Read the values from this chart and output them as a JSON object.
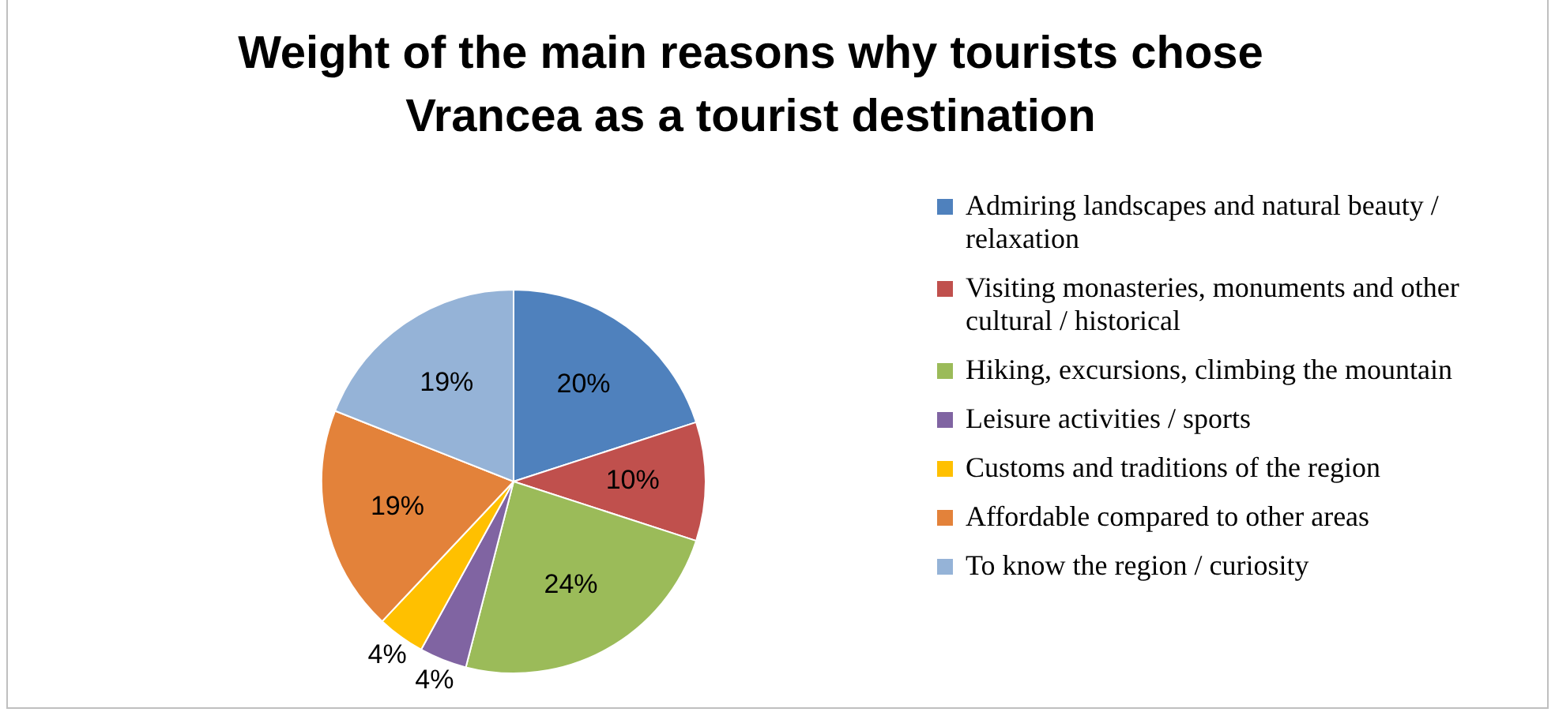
{
  "chart_data": {
    "type": "pie",
    "title": "Weight of the main reasons why tourists chose Vrancea as a tourist destination",
    "categories": [
      "Admiring landscapes and natural beauty / relaxation",
      "Visiting monasteries, monuments and other cultural / historical",
      "Hiking, excursions, climbing the mountain",
      "Leisure activities / sports",
      "Customs and traditions of the region",
      "Affordable compared to other areas",
      "To know the region / curiosity"
    ],
    "values": [
      20,
      10,
      24,
      4,
      4,
      19,
      19
    ],
    "colors": [
      "#4f81bd",
      "#c0504d",
      "#9bbb59",
      "#8064a2",
      "#ffc000",
      "#e3823a",
      "#95b3d7"
    ],
    "value_labels": [
      "20%",
      "10%",
      "24%",
      "4%",
      "4%",
      "19%",
      "19%"
    ],
    "legend": "right"
  }
}
